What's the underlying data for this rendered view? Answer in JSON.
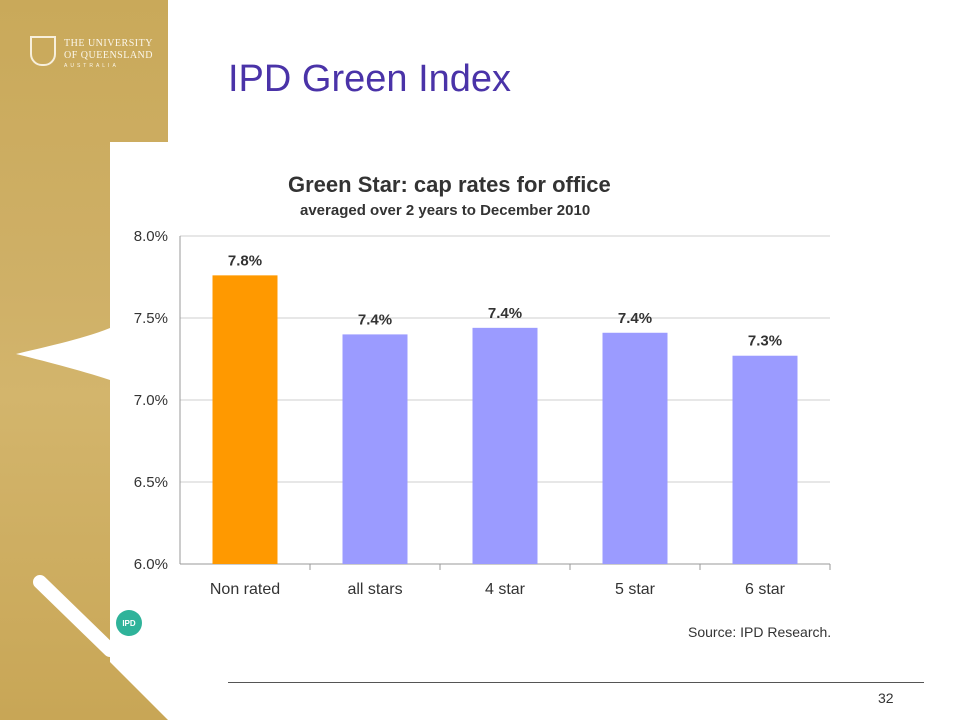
{
  "logo": {
    "line1": "THE UNIVERSITY",
    "line2": "OF QUEENSLAND",
    "line3": "AUSTRALIA"
  },
  "slide": {
    "title": "IPD Green Index",
    "page_number": "32"
  },
  "colors": {
    "title": "#4a33a8",
    "band": "#cfb067",
    "non_rated_bar": "#ff9900",
    "rated_bar": "#9b9bff"
  },
  "badge": {
    "label": "IPD"
  },
  "chart_data": {
    "type": "bar",
    "title": "Green Star: cap rates for office",
    "subtitle": "averaged over 2 years to December 2010",
    "categories": [
      "Non rated",
      "all stars",
      "4 star",
      "5 star",
      "6 star"
    ],
    "values": [
      7.76,
      7.4,
      7.44,
      7.41,
      7.27
    ],
    "data_labels": [
      "7.8%",
      "7.4%",
      "7.4%",
      "7.4%",
      "7.3%"
    ],
    "bar_colors": [
      "#ff9900",
      "#9b9bff",
      "#9b9bff",
      "#9b9bff",
      "#9b9bff"
    ],
    "ylim": [
      6.0,
      8.0
    ],
    "yticks": [
      6.0,
      6.5,
      7.0,
      7.5,
      8.0
    ],
    "ytick_labels": [
      "6.0%",
      "6.5%",
      "7.0%",
      "7.5%",
      "8.0%"
    ],
    "xlabel": "",
    "ylabel": "",
    "grid": true,
    "source": "Source: IPD Research."
  }
}
